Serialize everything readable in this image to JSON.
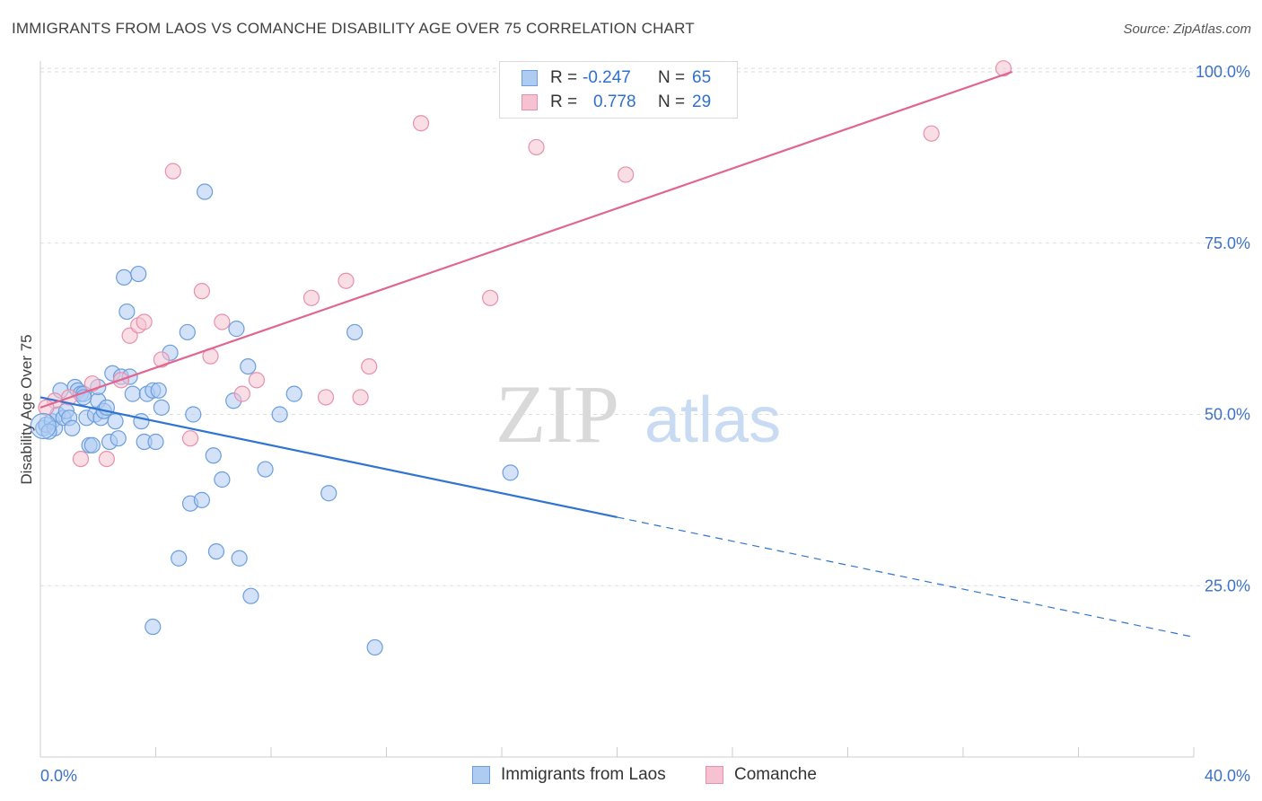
{
  "title": "IMMIGRANTS FROM LAOS VS COMANCHE DISABILITY AGE OVER 75 CORRELATION CHART",
  "source": "Source: ZipAtlas.com",
  "watermark": {
    "zip": "ZIP",
    "atlas": "atlas"
  },
  "legend": {
    "rows": [
      {
        "r_label": "R =",
        "r_value": "-0.247",
        "n_label": "N =",
        "n_value": "65"
      },
      {
        "r_label": "R =",
        "r_value": "0.778",
        "n_label": "N =",
        "n_value": "29"
      }
    ]
  },
  "bottom_legend": {
    "series_a": "Immigrants from Laos",
    "series_b": "Comanche"
  },
  "colors": {
    "blue_fill": "#aecbf2",
    "blue_stroke": "#6b9ede",
    "blue_line": "#2f74d0",
    "pink_fill": "#f6c2d2",
    "pink_stroke": "#e890ab",
    "pink_line": "#e0668f",
    "axis_text": "#3c72c6",
    "grid": "#dddddd"
  },
  "chart_data": {
    "type": "scatter",
    "title": "IMMIGRANTS FROM LAOS VS COMANCHE DISABILITY AGE OVER 75 CORRELATION CHART",
    "xlabel": "",
    "ylabel": "Disability Age Over 75",
    "xlim": [
      0,
      40
    ],
    "ylim": [
      0,
      103
    ],
    "x_tick_labels": [
      "0.0%",
      "40.0%"
    ],
    "y_ticks": [
      25,
      50,
      75,
      100
    ],
    "y_tick_labels": [
      "25.0%",
      "50.0%",
      "75.0%",
      "100.0%"
    ],
    "grid": true,
    "legend_placement": "top-center",
    "series": [
      {
        "name": "Immigrants from Laos",
        "color": "#aecbf2",
        "points": [
          [
            0.1,
            48.0
          ],
          [
            0.2,
            48.5
          ],
          [
            0.4,
            49.0
          ],
          [
            0.5,
            48.0
          ],
          [
            0.6,
            50.0
          ],
          [
            0.7,
            53.5
          ],
          [
            0.8,
            49.5
          ],
          [
            0.9,
            50.5
          ],
          [
            1.0,
            49.5
          ],
          [
            1.1,
            48.0
          ],
          [
            1.2,
            54.0
          ],
          [
            1.3,
            53.5
          ],
          [
            1.4,
            53.0
          ],
          [
            1.5,
            53.0
          ],
          [
            1.6,
            49.5
          ],
          [
            1.7,
            45.5
          ],
          [
            1.8,
            45.5
          ],
          [
            1.9,
            50.0
          ],
          [
            2.0,
            52.0
          ],
          [
            2.1,
            49.5
          ],
          [
            2.2,
            50.5
          ],
          [
            2.3,
            51.0
          ],
          [
            2.4,
            46.0
          ],
          [
            2.5,
            56.0
          ],
          [
            2.6,
            49.0
          ],
          [
            2.7,
            46.5
          ],
          [
            2.8,
            55.5
          ],
          [
            2.9,
            70.0
          ],
          [
            3.0,
            65.0
          ],
          [
            3.1,
            55.5
          ],
          [
            3.2,
            53.0
          ],
          [
            3.4,
            70.5
          ],
          [
            3.5,
            49.0
          ],
          [
            3.6,
            46.0
          ],
          [
            3.7,
            53.0
          ],
          [
            3.9,
            53.5
          ],
          [
            4.0,
            46.0
          ],
          [
            4.1,
            53.5
          ],
          [
            4.2,
            51.0
          ],
          [
            4.5,
            59.0
          ],
          [
            5.1,
            62.0
          ],
          [
            5.2,
            37.0
          ],
          [
            5.3,
            50.0
          ],
          [
            5.6,
            37.5
          ],
          [
            5.7,
            82.5
          ],
          [
            6.0,
            44.0
          ],
          [
            6.1,
            30.0
          ],
          [
            6.3,
            40.5
          ],
          [
            6.7,
            52.0
          ],
          [
            6.8,
            62.5
          ],
          [
            6.9,
            29.0
          ],
          [
            7.2,
            57.0
          ],
          [
            7.3,
            23.5
          ],
          [
            7.8,
            42.0
          ],
          [
            8.3,
            50.0
          ],
          [
            8.8,
            53.0
          ],
          [
            10.0,
            38.5
          ],
          [
            10.9,
            62.0
          ],
          [
            11.6,
            16.0
          ],
          [
            16.3,
            41.5
          ],
          [
            4.8,
            29.0
          ],
          [
            3.9,
            19.0
          ],
          [
            0.3,
            47.5
          ],
          [
            2.0,
            54.0
          ],
          [
            1.5,
            52.5
          ]
        ]
      },
      {
        "name": "Comanche",
        "color": "#f6c2d2",
        "points": [
          [
            0.5,
            52.0
          ],
          [
            1.0,
            52.5
          ],
          [
            1.4,
            43.5
          ],
          [
            1.8,
            54.5
          ],
          [
            2.3,
            43.5
          ],
          [
            2.8,
            55.0
          ],
          [
            3.1,
            61.5
          ],
          [
            3.4,
            63.0
          ],
          [
            3.6,
            63.5
          ],
          [
            4.2,
            58.0
          ],
          [
            4.6,
            85.5
          ],
          [
            5.2,
            46.5
          ],
          [
            5.6,
            68.0
          ],
          [
            5.9,
            58.5
          ],
          [
            6.3,
            63.5
          ],
          [
            7.0,
            53.0
          ],
          [
            7.5,
            55.0
          ],
          [
            9.4,
            67.0
          ],
          [
            9.9,
            52.5
          ],
          [
            10.6,
            69.5
          ],
          [
            11.1,
            52.5
          ],
          [
            11.4,
            57.0
          ],
          [
            13.2,
            92.5
          ],
          [
            15.6,
            67.0
          ],
          [
            17.2,
            89.0
          ],
          [
            20.3,
            85.0
          ],
          [
            30.9,
            91.0
          ],
          [
            33.4,
            100.5
          ],
          [
            0.2,
            51.0
          ]
        ]
      }
    ],
    "trendlines": [
      {
        "name": "Immigrants from Laos",
        "x": [
          0,
          20
        ],
        "y": [
          52.5,
          35.0
        ],
        "extended_x": [
          20,
          40
        ],
        "extended_y": [
          35.0,
          17.5
        ],
        "style_extended": "dashed"
      },
      {
        "name": "Comanche",
        "x": [
          0,
          33.7
        ],
        "y": [
          51.0,
          100.0
        ]
      }
    ]
  }
}
